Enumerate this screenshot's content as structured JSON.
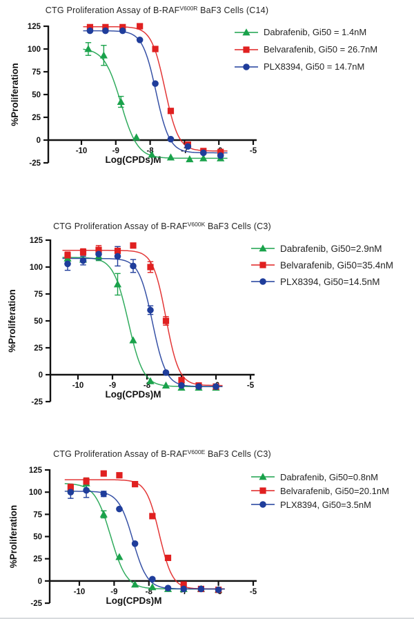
{
  "page": {
    "background": "#ffffff"
  },
  "colors": {
    "dabrafenib_green": "#1aa24b",
    "belvarafenib_red": "#e02020",
    "plx8394_blue": "#1f3d9b",
    "axis": "#111111",
    "text": "#232323"
  },
  "chart_data": [
    {
      "type": "scatter",
      "title_pre": "CTG Proliferation Assay of B-RAF",
      "title_sup": "V600R",
      "title_post": " BaF3 Cells (C14)",
      "xlabel": "Log(CPDs)M",
      "ylabel": "%Proliferation",
      "xlim": [
        -10.65,
        -4.85
      ],
      "ylim": [
        -25,
        125
      ],
      "xticks": [
        -10,
        -9,
        -8,
        -7,
        -6,
        -5
      ],
      "yticks": [
        125,
        100,
        75,
        50,
        25,
        0,
        -25
      ],
      "grid": false,
      "legend_position": "right-top",
      "series": [
        {
          "name": "Dabrafenib",
          "legend_label": "Dabrafenib, Gi50 = 1.4nM",
          "gi50_nM": 1.4,
          "marker": "triangle",
          "color": "#1aa24b",
          "x": [
            -9.8,
            -9.35,
            -8.85,
            -8.4,
            -7.95,
            -7.4,
            -6.85,
            -6.45,
            -5.95
          ],
          "y": [
            100,
            93,
            42,
            3,
            -16,
            -19,
            -21,
            -20,
            -20
          ],
          "err": [
            7,
            11,
            6,
            0,
            0,
            0,
            0,
            0,
            0
          ],
          "fit": {
            "top": 101,
            "bottom": -20,
            "logic50": -8.85,
            "hill": 1.8
          },
          "curve_x": [
            -9.95,
            -5.75
          ]
        },
        {
          "name": "Belvarafenib",
          "legend_label": "Belvarafenib, Gi50 = 26.7nM",
          "gi50_nM": 26.7,
          "marker": "square",
          "color": "#e02020",
          "x": [
            -9.75,
            -9.3,
            -8.8,
            -8.3,
            -7.85,
            -7.4,
            -6.9,
            -6.45,
            -5.95
          ],
          "y": [
            124,
            124,
            124,
            125,
            100,
            32,
            -5,
            -12,
            -13
          ],
          "err": [
            0,
            0,
            0,
            0,
            0,
            0,
            0,
            0,
            0
          ],
          "fit": {
            "top": 124.5,
            "bottom": -12,
            "logic50": -7.57,
            "hill": 2.2
          },
          "curve_x": [
            -9.95,
            -5.75
          ]
        },
        {
          "name": "PLX8394",
          "legend_label": "PLX8394, Gi50 = 14.7nM",
          "gi50_nM": 14.7,
          "marker": "circle",
          "color": "#1f3d9b",
          "x": [
            -9.75,
            -9.3,
            -8.8,
            -8.3,
            -7.85,
            -7.4,
            -6.9,
            -6.45,
            -5.95
          ],
          "y": [
            120,
            120,
            120,
            110,
            62,
            1,
            -7,
            -14,
            -17
          ],
          "err": [
            0,
            0,
            0,
            0,
            0,
            0,
            0,
            0,
            0
          ],
          "fit": {
            "top": 120,
            "bottom": -14,
            "logic50": -7.83,
            "hill": 2.2
          },
          "curve_x": [
            -9.95,
            -5.75
          ]
        }
      ]
    },
    {
      "type": "scatter",
      "title_pre": "CTG Proliferation Assay of B-RAF",
      "title_sup": "V600K",
      "title_post": " BaF3 Cells (C3)",
      "xlabel": "Log(CPDs)M",
      "ylabel": "%Proliferation",
      "xlim": [
        -10.65,
        -4.85
      ],
      "ylim": [
        -25,
        125
      ],
      "xticks": [
        -10,
        -9,
        -8,
        -7,
        -6,
        -5
      ],
      "yticks": [
        125,
        100,
        75,
        50,
        25,
        0,
        -25
      ],
      "grid": false,
      "legend_position": "right-top",
      "series": [
        {
          "name": "Dabrafenib",
          "legend_label": "Dabrafenib, Gi50=2.9nM",
          "gi50_nM": 2.9,
          "marker": "triangle",
          "color": "#1aa24b",
          "x": [
            -10.3,
            -9.85,
            -9.4,
            -8.85,
            -8.4,
            -7.9,
            -7.45,
            -7.0,
            -6.5,
            -6.0
          ],
          "y": [
            108,
            107,
            110,
            84,
            32,
            -6,
            -10,
            -12,
            -12,
            -12
          ],
          "err": [
            0,
            0,
            4,
            10,
            0,
            0,
            0,
            0,
            0,
            0
          ],
          "fit": {
            "top": 109,
            "bottom": -11,
            "logic50": -8.54,
            "hill": 2.0
          },
          "curve_x": [
            -10.45,
            -5.8
          ]
        },
        {
          "name": "Belvarafenib",
          "legend_label": "Belvarafenib, Gi50=35.4nM",
          "gi50_nM": 35.4,
          "marker": "square",
          "color": "#e02020",
          "x": [
            -10.3,
            -9.85,
            -9.4,
            -8.85,
            -8.4,
            -7.9,
            -7.45,
            -7.0,
            -6.5,
            -6.0
          ],
          "y": [
            111,
            114,
            116,
            115,
            120,
            100,
            50,
            -5,
            -10,
            -11
          ],
          "err": [
            3,
            3,
            4,
            4,
            0,
            5,
            4,
            0,
            0,
            0
          ],
          "fit": {
            "top": 115.5,
            "bottom": -10,
            "logic50": -7.45,
            "hill": 2.3
          },
          "curve_x": [
            -10.45,
            -5.8
          ]
        },
        {
          "name": "PLX8394",
          "legend_label": "PLX8394, Gi50=14.5nM",
          "gi50_nM": 14.5,
          "marker": "circle",
          "color": "#1f3d9b",
          "x": [
            -10.3,
            -9.85,
            -9.4,
            -8.85,
            -8.4,
            -7.9,
            -7.45,
            -7.0,
            -6.5,
            -6.0
          ],
          "y": [
            103,
            106,
            112,
            110,
            101,
            60,
            2,
            -10,
            -11,
            -11
          ],
          "err": [
            6,
            4,
            5,
            9,
            6,
            4,
            0,
            0,
            0,
            0
          ],
          "fit": {
            "top": 108,
            "bottom": -11,
            "logic50": -7.84,
            "hill": 2.2
          },
          "curve_x": [
            -10.45,
            -5.8
          ]
        }
      ]
    },
    {
      "type": "scatter",
      "title_pre": "CTG Proliferation Assay of B-RAF",
      "title_sup": "V600E",
      "title_post": " BaF3 Cells (C3)",
      "xlabel": "Log(CPDs)M",
      "ylabel": "%Proliferation",
      "xlim": [
        -10.65,
        -4.85
      ],
      "ylim": [
        -25,
        125
      ],
      "xticks": [
        -10,
        -9,
        -8,
        -7,
        -6,
        -5
      ],
      "yticks": [
        125,
        100,
        75,
        50,
        25,
        0,
        -25
      ],
      "grid": false,
      "legend_position": "right-top",
      "series": [
        {
          "name": "Dabrafenib",
          "legend_label": "Dabrafenib, Gi50=0.8nM",
          "gi50_nM": 0.8,
          "marker": "triangle",
          "color": "#1aa24b",
          "x": [
            -10.25,
            -9.8,
            -9.3,
            -8.85,
            -8.4,
            -7.9,
            -7.45,
            -7.0,
            -6.5,
            -6.0
          ],
          "y": [
            104,
            110,
            75,
            27,
            -4,
            -7,
            -9,
            -9,
            -9,
            -10
          ],
          "err": [
            5,
            6,
            4,
            0,
            0,
            0,
            0,
            0,
            0,
            0
          ],
          "fit": {
            "top": 110,
            "bottom": -9,
            "logic50": -9.1,
            "hill": 1.9
          },
          "curve_x": [
            -10.42,
            -5.8
          ]
        },
        {
          "name": "Belvarafenib",
          "legend_label": "Belvarafenib, Gi50=20.1nM",
          "gi50_nM": 20.1,
          "marker": "square",
          "color": "#e02020",
          "x": [
            -10.25,
            -9.8,
            -9.3,
            -8.85,
            -8.4,
            -7.9,
            -7.45,
            -7.0,
            -6.5,
            -6.0
          ],
          "y": [
            105,
            112,
            121,
            119,
            109,
            73,
            26,
            -4,
            -9,
            -10
          ],
          "err": [
            4,
            4,
            0,
            0,
            0,
            0,
            0,
            0,
            0,
            0
          ],
          "fit": {
            "top": 114,
            "bottom": -9,
            "logic50": -7.7,
            "hill": 2.3
          },
          "curve_x": [
            -10.42,
            -5.8
          ]
        },
        {
          "name": "PLX8394",
          "legend_label": "PLX8394, Gi50=3.5nM",
          "gi50_nM": 3.5,
          "marker": "circle",
          "color": "#1f3d9b",
          "x": [
            -10.25,
            -9.8,
            -9.3,
            -8.85,
            -8.4,
            -7.9,
            -7.45,
            -7.0,
            -6.5,
            -6.0
          ],
          "y": [
            100,
            102,
            98,
            81,
            42,
            2,
            -8,
            -9,
            -9,
            -10
          ],
          "err": [
            7,
            8,
            3,
            0,
            0,
            0,
            0,
            0,
            0,
            0
          ],
          "fit": {
            "top": 101,
            "bottom": -9,
            "logic50": -8.46,
            "hill": 2.1
          },
          "curve_x": [
            -10.42,
            -5.8
          ]
        }
      ]
    }
  ]
}
